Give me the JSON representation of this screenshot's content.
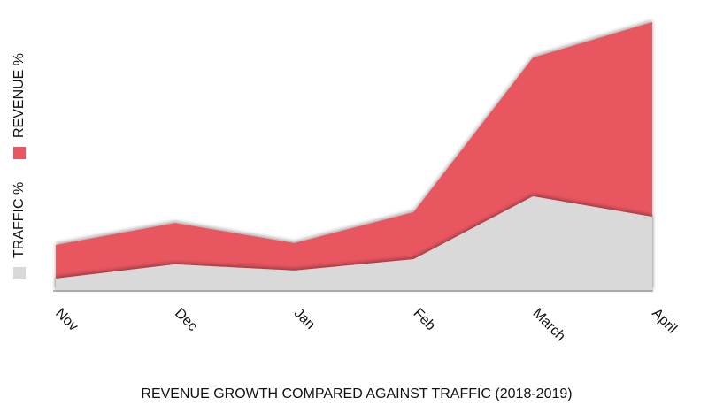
{
  "chart_data": {
    "type": "area",
    "title": "REVENUE GROWTH COMPARED AGAINST TRAFFIC (2018-2019)",
    "categories": [
      "Nov",
      "Dec",
      "Jan",
      "Feb",
      "March",
      "April"
    ],
    "series": [
      {
        "name": "TRAFFIC %",
        "color": "#d9d9d9",
        "values": [
          4.6,
          9.9,
          7.6,
          11.8,
          35.2,
          27.6
        ]
      },
      {
        "name": "REVENUE %",
        "color": "#e85660",
        "values": [
          17.1,
          25.3,
          17.8,
          29.3,
          86.8,
          100
        ]
      }
    ],
    "ylim": [
      0,
      100
    ]
  }
}
